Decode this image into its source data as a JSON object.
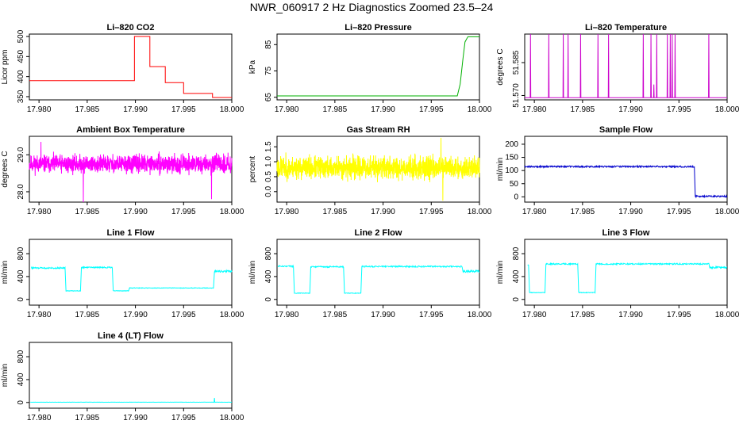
{
  "title": "NWR_060917  2 Hz Diagnostics Zoomed 23.5–24",
  "chart_data": [
    {
      "id": "co2",
      "type": "line",
      "title": "Li–820 CO2",
      "xlabel": "",
      "ylabel": "Licor ppm",
      "color": "#ff0000",
      "xlim": [
        17.979,
        18.0
      ],
      "ylim": [
        342,
        506
      ],
      "xticks": [
        17.98,
        17.985,
        17.99,
        17.995,
        18.0
      ],
      "xtick_labels": [
        "17.980",
        "17.985",
        "17.990",
        "17.995",
        "18.000"
      ],
      "yticks": [
        350,
        400,
        450,
        500
      ],
      "ytick_labels": [
        "350",
        "400",
        "450",
        "500"
      ],
      "ylabel_rotate": true,
      "x": [
        17.979,
        17.9899,
        17.9899,
        17.9915,
        17.9915,
        17.9931,
        17.9931,
        17.995,
        17.995,
        17.998,
        17.998,
        18.0
      ],
      "y": [
        390,
        390,
        500,
        500,
        425,
        425,
        385,
        385,
        358,
        358,
        348,
        348
      ]
    },
    {
      "id": "pressure",
      "type": "line",
      "title": "Li–820 Pressure",
      "xlabel": "",
      "ylabel": "kPa",
      "color": "#00b000",
      "xlim": [
        17.979,
        18.0
      ],
      "ylim": [
        64,
        89
      ],
      "xticks": [
        17.98,
        17.985,
        17.99,
        17.995,
        18.0
      ],
      "xtick_labels": [
        "17.980",
        "17.985",
        "17.990",
        "17.995",
        "18.000"
      ],
      "yticks": [
        65,
        75,
        85
      ],
      "ytick_labels": [
        "65",
        "75",
        "85"
      ],
      "ylabel_rotate": true,
      "x": [
        17.979,
        17.9977,
        17.998,
        17.9983,
        17.9985,
        17.9988,
        18.0
      ],
      "y": [
        65.5,
        65.5,
        70,
        80,
        86,
        88,
        88
      ]
    },
    {
      "id": "temperature",
      "type": "line",
      "title": "Li–820 Temperature",
      "xlabel": "",
      "ylabel": "degrees C",
      "color": "#cc00cc",
      "xlim": [
        17.979,
        18.0
      ],
      "ylim": [
        51.568,
        51.598
      ],
      "xticks": [
        17.98,
        17.985,
        17.99,
        17.995,
        18.0
      ],
      "xtick_labels": [
        "17.980",
        "17.985",
        "17.990",
        "17.995",
        "18.000"
      ],
      "yticks": [
        51.57,
        51.585
      ],
      "ytick_labels": [
        "51.570",
        "51.585"
      ],
      "ylabel_rotate": true,
      "baseline": 51.569,
      "spikes": [
        {
          "x": 17.9796,
          "y": 51.598
        },
        {
          "x": 17.9815,
          "y": 51.598
        },
        {
          "x": 17.983,
          "y": 51.598
        },
        {
          "x": 17.9835,
          "y": 51.598
        },
        {
          "x": 17.9848,
          "y": 51.598
        },
        {
          "x": 17.9866,
          "y": 51.598
        },
        {
          "x": 17.9877,
          "y": 51.598
        },
        {
          "x": 17.9913,
          "y": 51.598
        },
        {
          "x": 17.9921,
          "y": 51.598
        },
        {
          "x": 17.9924,
          "y": 51.575
        },
        {
          "x": 17.9927,
          "y": 51.598
        },
        {
          "x": 17.9938,
          "y": 51.598
        },
        {
          "x": 17.9941,
          "y": 51.598
        },
        {
          "x": 17.9943,
          "y": 51.598
        },
        {
          "x": 17.9946,
          "y": 51.598
        },
        {
          "x": 17.9981,
          "y": 51.598
        }
      ]
    },
    {
      "id": "ambient_box_temp",
      "type": "line",
      "title": "Ambient Box Temperature",
      "xlabel": "",
      "ylabel": "degrees C",
      "color": "#ff00ff",
      "xlim": [
        17.979,
        18.0
      ],
      "ylim": [
        27.72,
        29.5
      ],
      "xticks": [
        17.98,
        17.985,
        17.99,
        17.995,
        18.0
      ],
      "xtick_labels": [
        "17.980",
        "17.985",
        "17.990",
        "17.995",
        "18.000"
      ],
      "yticks": [
        28.0,
        29.0
      ],
      "ytick_labels": [
        "28.0",
        "29.0"
      ],
      "ylabel_rotate": true,
      "noise": {
        "mean": 28.75,
        "amplitude": 0.35,
        "n": 1400,
        "seed": 11
      },
      "outliers": [
        {
          "x": 17.9846,
          "y": 27.72
        },
        {
          "x": 17.9979,
          "y": 27.8
        },
        {
          "x": 17.9802,
          "y": 29.35
        }
      ]
    },
    {
      "id": "gas_stream_rh",
      "type": "line",
      "title": "Gas Stream RH",
      "xlabel": "",
      "ylabel": "percent",
      "color": "#ffff00",
      "xlim": [
        17.979,
        18.0
      ],
      "ylim": [
        -0.35,
        1.85
      ],
      "xticks": [
        17.98,
        17.985,
        17.99,
        17.995,
        18.0
      ],
      "xtick_labels": [
        "17.980",
        "17.985",
        "17.990",
        "17.995",
        "18.000"
      ],
      "yticks": [
        0.0,
        0.5,
        1.0,
        1.5
      ],
      "ytick_labels": [
        "0.0",
        "0.5",
        "1.0",
        "1.5"
      ],
      "ylabel_rotate": true,
      "noise": {
        "mean": 0.8,
        "amplitude": 0.55,
        "n": 1400,
        "seed": 23
      },
      "outliers": [
        {
          "x": 17.9962,
          "y": -0.3
        },
        {
          "x": 17.996,
          "y": 1.8
        }
      ]
    },
    {
      "id": "sample_flow",
      "type": "line",
      "title": "Sample Flow",
      "xlabel": "",
      "ylabel": "ml/min",
      "color": "#0000cc",
      "xlim": [
        17.979,
        18.0
      ],
      "ylim": [
        -20,
        230
      ],
      "xticks": [
        17.98,
        17.985,
        17.99,
        17.995,
        18.0
      ],
      "xtick_labels": [
        "17.980",
        "17.985",
        "17.990",
        "17.995",
        "18.000"
      ],
      "yticks": [
        0,
        50,
        100,
        150,
        200
      ],
      "ytick_labels": [
        "0",
        "50",
        "100",
        "150",
        "200"
      ],
      "ylabel_rotate": false,
      "segments": [
        {
          "x0": 17.979,
          "x1": 17.9966,
          "level": 115,
          "noise": 3
        },
        {
          "x0": 17.9967,
          "x1": 18.0,
          "level": 2,
          "noise": 3
        }
      ]
    },
    {
      "id": "line1_flow",
      "type": "line",
      "title": "Line 1 Flow",
      "xlabel": "",
      "ylabel": "ml/min",
      "color": "#00ffff",
      "xlim": [
        17.979,
        18.0
      ],
      "ylim": [
        -100,
        1050
      ],
      "xticks": [
        17.98,
        17.985,
        17.99,
        17.995,
        18.0
      ],
      "xtick_labels": [
        "17.980",
        "17.985",
        "17.990",
        "17.995",
        "18.000"
      ],
      "yticks": [
        0,
        400,
        800
      ],
      "ytick_labels": [
        "0",
        "400",
        "800"
      ],
      "ylabel_rotate": true,
      "segments": [
        {
          "x0": 17.9792,
          "x1": 17.9827,
          "level": 550,
          "noise": 12
        },
        {
          "x0": 17.9828,
          "x1": 17.9843,
          "level": 150,
          "noise": 5
        },
        {
          "x0": 17.9844,
          "x1": 17.9876,
          "level": 560,
          "noise": 12
        },
        {
          "x0": 17.9877,
          "x1": 17.9893,
          "level": 150,
          "noise": 5
        },
        {
          "x0": 17.9894,
          "x1": 17.9981,
          "level": 200,
          "noise": 5
        },
        {
          "x0": 17.9982,
          "x1": 18.0,
          "level": 490,
          "noise": 18
        }
      ]
    },
    {
      "id": "line2_flow",
      "type": "line",
      "title": "Line 2 Flow",
      "xlabel": "",
      "ylabel": "ml/min",
      "color": "#00ffff",
      "xlim": [
        17.979,
        18.0
      ],
      "ylim": [
        -100,
        1050
      ],
      "xticks": [
        17.98,
        17.985,
        17.99,
        17.995,
        18.0
      ],
      "xtick_labels": [
        "17.980",
        "17.985",
        "17.990",
        "17.995",
        "18.000"
      ],
      "yticks": [
        0,
        400,
        800
      ],
      "ytick_labels": [
        "0",
        "400",
        "800"
      ],
      "ylabel_rotate": true,
      "segments": [
        {
          "x0": 17.9791,
          "x1": 17.9807,
          "level": 580,
          "noise": 12
        },
        {
          "x0": 17.9808,
          "x1": 17.9824,
          "level": 110,
          "noise": 5
        },
        {
          "x0": 17.9825,
          "x1": 17.9859,
          "level": 570,
          "noise": 12
        },
        {
          "x0": 17.986,
          "x1": 17.9877,
          "level": 110,
          "noise": 5
        },
        {
          "x0": 17.9878,
          "x1": 17.9982,
          "level": 575,
          "noise": 12
        },
        {
          "x0": 17.9983,
          "x1": 18.0,
          "level": 490,
          "noise": 18
        }
      ]
    },
    {
      "id": "line3_flow",
      "type": "line",
      "title": "Line 3 Flow",
      "xlabel": "",
      "ylabel": "ml/min",
      "color": "#00ffff",
      "xlim": [
        17.979,
        18.0
      ],
      "ylim": [
        -100,
        1050
      ],
      "xticks": [
        17.98,
        17.985,
        17.99,
        17.995,
        18.0
      ],
      "xtick_labels": [
        "17.980",
        "17.985",
        "17.990",
        "17.995",
        "18.000"
      ],
      "yticks": [
        0,
        400,
        800
      ],
      "ytick_labels": [
        "0",
        "400",
        "800"
      ],
      "ylabel_rotate": true,
      "segments": [
        {
          "x0": 17.9793,
          "x1": 17.9794,
          "level": 600,
          "noise": 5
        },
        {
          "x0": 17.9795,
          "x1": 17.9811,
          "level": 120,
          "noise": 5
        },
        {
          "x0": 17.9812,
          "x1": 17.9845,
          "level": 620,
          "noise": 12
        },
        {
          "x0": 17.9846,
          "x1": 17.9863,
          "level": 120,
          "noise": 5
        },
        {
          "x0": 17.9864,
          "x1": 17.9981,
          "level": 620,
          "noise": 12
        },
        {
          "x0": 17.9982,
          "x1": 18.0,
          "level": 560,
          "noise": 18
        }
      ]
    },
    {
      "id": "line4_flow",
      "type": "line",
      "title": "Line 4 (LT) Flow",
      "xlabel": "",
      "ylabel": "ml/min",
      "color": "#00ffff",
      "xlim": [
        17.979,
        18.0
      ],
      "ylim": [
        -100,
        1050
      ],
      "xticks": [
        17.98,
        17.985,
        17.99,
        17.995,
        18.0
      ],
      "xtick_labels": [
        "17.980",
        "17.985",
        "17.990",
        "17.995",
        "18.000"
      ],
      "yticks": [
        0,
        400,
        800
      ],
      "ytick_labels": [
        "0",
        "400",
        "800"
      ],
      "ylabel_rotate": true,
      "segments": [
        {
          "x0": 17.9791,
          "x1": 18.0,
          "level": 5,
          "noise": 2
        }
      ],
      "outliers": [
        {
          "x": 17.9982,
          "y": 80
        }
      ]
    }
  ]
}
